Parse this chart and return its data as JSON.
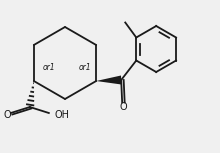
{
  "bg_color": "#f0f0f0",
  "line_color": "#1a1a1a",
  "lw": 1.3,
  "or1_fontsize": 5.5,
  "label_fontsize": 7.0,
  "figsize": [
    2.2,
    1.53
  ],
  "dpi": 100,
  "xlim": [
    0.0,
    4.4
  ],
  "ylim": [
    0.0,
    3.06
  ]
}
